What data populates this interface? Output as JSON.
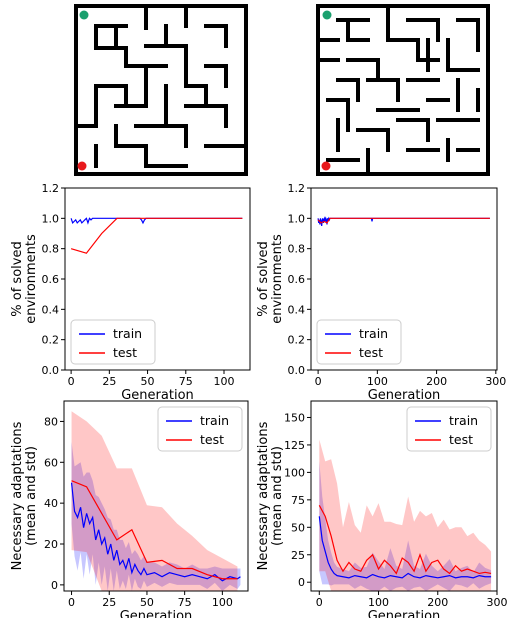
{
  "colors": {
    "train": "#0000ff",
    "test": "#ff0000",
    "start": "#1aa06e",
    "goal": "#e8191c",
    "maze": "#000000"
  },
  "mazes": [
    {
      "name": "maze-left",
      "start_marker": "green-dot",
      "goal_marker": "red-dot"
    },
    {
      "name": "maze-right",
      "start_marker": "green-dot",
      "goal_marker": "red-dot"
    }
  ],
  "chart_data": [
    {
      "type": "line",
      "xlabel": "Generation",
      "ylabel_lines": [
        "% of solved",
        "environments"
      ],
      "xlim": [
        -4,
        117
      ],
      "ylim": [
        0,
        1.2
      ],
      "xticks": [
        0,
        25,
        50,
        75,
        100
      ],
      "yticks": [
        0.0,
        0.2,
        0.4,
        0.6,
        0.8,
        1.0,
        1.2
      ],
      "ytick_labels": [
        "0.0",
        "0.2",
        "0.4",
        "0.6",
        "0.8",
        "1.0",
        "1.2"
      ],
      "legend": "lower-left",
      "series": [
        {
          "name": "train",
          "x": [
            0,
            1,
            2,
            3,
            4,
            5,
            6,
            7,
            8,
            9,
            10,
            11,
            12,
            13,
            14,
            15,
            20,
            30,
            45,
            46,
            47,
            48,
            49,
            50,
            60,
            80,
            100,
            112
          ],
          "y": [
            1.0,
            0.97,
            0.98,
            0.99,
            0.97,
            0.98,
            0.99,
            0.97,
            0.98,
            0.99,
            1.0,
            0.97,
            1.0,
            0.99,
            1.0,
            1.0,
            1.0,
            1.0,
            1.0,
            0.99,
            0.97,
            0.99,
            1.0,
            1.0,
            1.0,
            1.0,
            1.0,
            1.0
          ]
        },
        {
          "name": "test",
          "x": [
            0,
            10,
            20,
            30,
            40,
            50,
            112
          ],
          "y": [
            0.8,
            0.77,
            0.9,
            1.0,
            1.0,
            1.0,
            1.0
          ]
        }
      ]
    },
    {
      "type": "line",
      "xlabel": "Generation",
      "ylabel_lines": [
        "% of solved",
        "environments"
      ],
      "xlim": [
        -12,
        302
      ],
      "ylim": [
        0,
        1.2
      ],
      "xticks": [
        0,
        100,
        200,
        300
      ],
      "yticks": [
        0.0,
        0.2,
        0.4,
        0.6,
        0.8,
        1.0,
        1.2
      ],
      "ytick_labels": [
        "0.0",
        "0.2",
        "0.4",
        "0.6",
        "0.8",
        "1.0",
        "1.2"
      ],
      "legend": "lower-left",
      "series": [
        {
          "name": "train",
          "x": [
            0,
            1,
            2,
            3,
            4,
            5,
            6,
            7,
            8,
            9,
            10,
            11,
            12,
            13,
            14,
            15,
            16,
            17,
            18,
            19,
            20,
            25,
            30,
            60,
            90,
            91,
            92,
            100,
            200,
            290
          ],
          "y": [
            1.0,
            0.97,
            0.99,
            0.96,
            1.0,
            0.98,
            0.95,
            0.99,
            1.0,
            0.97,
            0.99,
            1.0,
            0.98,
            1.0,
            0.99,
            0.96,
            1.0,
            0.99,
            1.0,
            0.99,
            1.0,
            1.0,
            1.0,
            1.0,
            1.0,
            0.98,
            1.0,
            1.0,
            1.0,
            1.0
          ]
        },
        {
          "name": "test",
          "x": [
            0,
            5,
            10,
            15,
            20,
            30,
            290
          ],
          "y": [
            0.99,
            0.97,
            0.98,
            0.97,
            1.0,
            1.0,
            1.0
          ]
        }
      ]
    },
    {
      "type": "line",
      "xlabel": "Generation",
      "ylabel_lines": [
        "Necessary adaptations",
        "(mean and std)"
      ],
      "xlim": [
        -5,
        117
      ],
      "ylim": [
        -3,
        90
      ],
      "xticks": [
        0,
        25,
        50,
        75,
        100
      ],
      "yticks": [
        0,
        20,
        40,
        60,
        80
      ],
      "ytick_labels": [
        "0",
        "20",
        "40",
        "60",
        "80"
      ],
      "legend": "upper-right",
      "series": [
        {
          "name": "train",
          "x": [
            0,
            2,
            4,
            6,
            8,
            10,
            12,
            14,
            16,
            18,
            20,
            22,
            24,
            26,
            28,
            30,
            32,
            34,
            36,
            38,
            40,
            42,
            44,
            46,
            48,
            50,
            55,
            60,
            65,
            70,
            75,
            80,
            85,
            90,
            95,
            100,
            105,
            110,
            112
          ],
          "y": [
            50,
            36,
            33,
            38,
            28,
            35,
            30,
            33,
            22,
            27,
            20,
            23,
            15,
            20,
            12,
            17,
            10,
            12,
            8,
            13,
            6,
            10,
            7,
            5,
            8,
            5,
            6,
            4,
            6,
            5,
            4,
            5,
            4,
            3,
            5,
            2,
            4,
            3,
            4
          ],
          "std": [
            20,
            22,
            26,
            22,
            25,
            20,
            25,
            18,
            22,
            16,
            20,
            14,
            18,
            12,
            15,
            10,
            12,
            10,
            10,
            8,
            9,
            7,
            8,
            7,
            6,
            6,
            5,
            5,
            5,
            5,
            4,
            5,
            4,
            5,
            4,
            6,
            4,
            5,
            4
          ]
        },
        {
          "name": "test",
          "x": [
            0,
            10,
            20,
            30,
            40,
            50,
            60,
            70,
            80,
            90,
            100,
            110
          ],
          "y": [
            51,
            48,
            35,
            22,
            27,
            11,
            12,
            8,
            8,
            5,
            3,
            3
          ],
          "std": [
            34,
            32,
            38,
            35,
            30,
            28,
            26,
            22,
            16,
            12,
            10,
            6
          ]
        }
      ]
    },
    {
      "type": "line",
      "xlabel": "Generation",
      "ylabel_lines": [
        "Necessary adaptations",
        "(mean and std)"
      ],
      "xlim": [
        -14,
        300
      ],
      "ylim": [
        -8,
        165
      ],
      "xticks": [
        0,
        100,
        200,
        300
      ],
      "yticks": [
        0,
        25,
        50,
        75,
        100,
        125,
        150
      ],
      "ytick_labels": [
        "0",
        "25",
        "50",
        "75",
        "100",
        "125",
        "150"
      ],
      "legend": "upper-right",
      "series": [
        {
          "name": "train",
          "x": [
            0,
            5,
            10,
            15,
            20,
            25,
            30,
            40,
            50,
            60,
            70,
            80,
            90,
            100,
            110,
            120,
            130,
            140,
            150,
            160,
            170,
            180,
            190,
            200,
            210,
            220,
            230,
            240,
            250,
            260,
            270,
            280,
            290
          ],
          "y": [
            60,
            38,
            28,
            18,
            12,
            8,
            6,
            5,
            4,
            6,
            5,
            4,
            7,
            5,
            4,
            6,
            5,
            4,
            8,
            5,
            4,
            6,
            5,
            4,
            5,
            6,
            4,
            5,
            5,
            4,
            6,
            5,
            5
          ],
          "std": [
            50,
            40,
            30,
            20,
            15,
            10,
            8,
            7,
            6,
            12,
            8,
            10,
            20,
            14,
            8,
            25,
            10,
            8,
            30,
            10,
            8,
            20,
            10,
            6,
            10,
            15,
            6,
            8,
            10,
            5,
            12,
            8,
            6
          ]
        },
        {
          "name": "test",
          "x": [
            0,
            10,
            20,
            30,
            40,
            50,
            60,
            70,
            80,
            90,
            100,
            110,
            120,
            130,
            140,
            150,
            160,
            170,
            180,
            190,
            200,
            210,
            220,
            230,
            240,
            250,
            260,
            270,
            280,
            290
          ],
          "y": [
            70,
            60,
            42,
            20,
            10,
            18,
            12,
            10,
            20,
            25,
            12,
            20,
            15,
            8,
            22,
            18,
            10,
            25,
            10,
            18,
            20,
            12,
            8,
            15,
            10,
            12,
            10,
            8,
            9,
            8
          ],
          "std": [
            60,
            50,
            70,
            70,
            40,
            55,
            40,
            35,
            50,
            35,
            60,
            35,
            40,
            45,
            30,
            60,
            45,
            40,
            50,
            45,
            30,
            45,
            40,
            35,
            40,
            30,
            35,
            30,
            25,
            20
          ]
        }
      ]
    }
  ]
}
